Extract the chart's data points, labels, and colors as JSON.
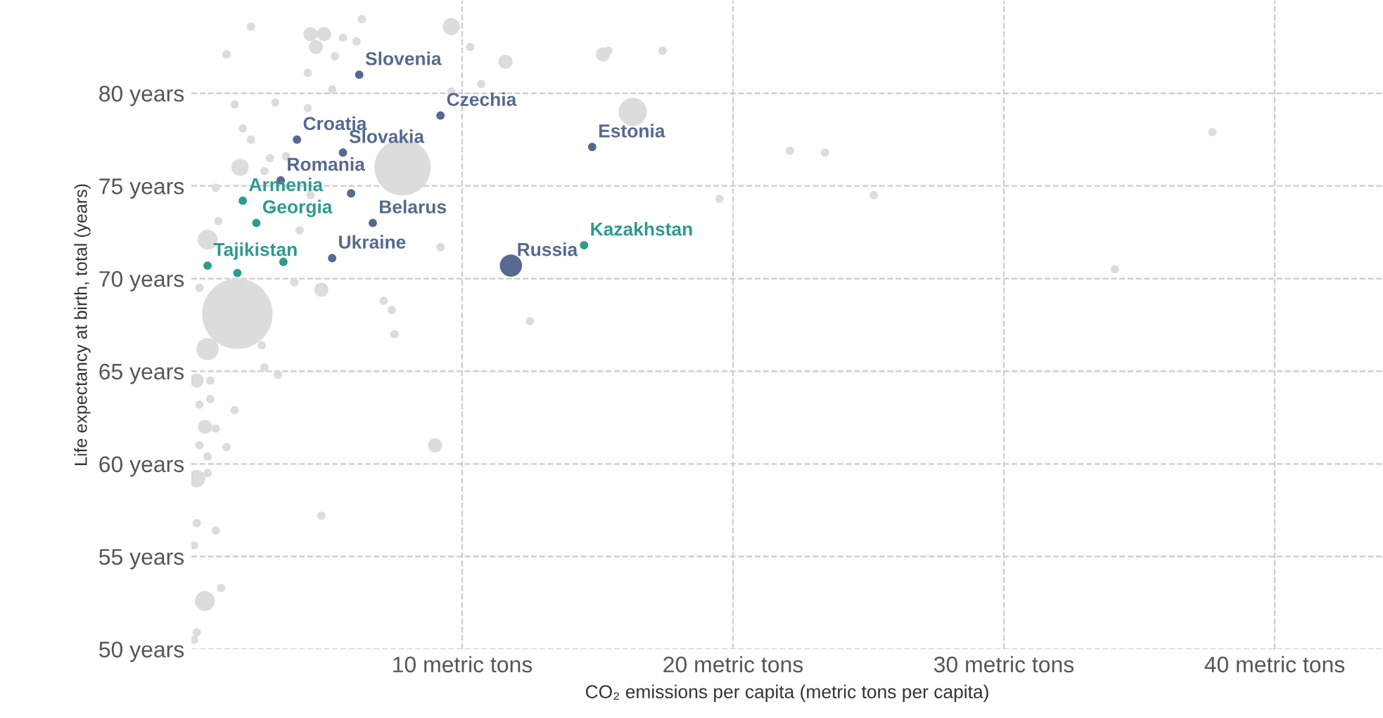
{
  "chart_data": {
    "type": "bubble",
    "xlabel": "CO₂ emissions per capita (metric tons per capita)",
    "ylabel": "Life expectancy at birth, total (years)",
    "xlim": [
      0,
      44
    ],
    "ylim": [
      50,
      85
    ],
    "xticks": [
      {
        "value": 10,
        "label": "10 metric tons"
      },
      {
        "value": 20,
        "label": "20 metric tons"
      },
      {
        "value": 30,
        "label": "30 metric tons"
      },
      {
        "value": 40,
        "label": "40 metric tons"
      }
    ],
    "yticks": [
      {
        "value": 50,
        "label": "50 years"
      },
      {
        "value": 55,
        "label": "55 years"
      },
      {
        "value": 60,
        "label": "60 years"
      },
      {
        "value": 65,
        "label": "65 years"
      },
      {
        "value": 70,
        "label": "70 years"
      },
      {
        "value": 75,
        "label": "75 years"
      },
      {
        "value": 80,
        "label": "80 years"
      }
    ],
    "grid": true,
    "line_style": "dashed",
    "series": [
      {
        "color": "#dcdcdc",
        "x": [
          9.6,
          6.3,
          2.2,
          4.4,
          4.9,
          5.6,
          6.1,
          4.6,
          10.3,
          11.6,
          15.4,
          17.4,
          1.3,
          5.3,
          4.3,
          5.2,
          9.6,
          10.7,
          3.1,
          1.6,
          4.3,
          16.3,
          1.9,
          2.2,
          3.5,
          2.9,
          7.8,
          1.8,
          0.9,
          2.7,
          3.0,
          4.4,
          1.0,
          4.0,
          0.6,
          9.2,
          3.8,
          15.2,
          22.1,
          23.4,
          19.5,
          25.2,
          37.7,
          34.1,
          12.5,
          0.3,
          4.8,
          7.1,
          7.4,
          7.5,
          1.7,
          0.6,
          2.6,
          2.7,
          3.2,
          0.2,
          0.7,
          0.3,
          0.7,
          1.6,
          0.5,
          0.9,
          1.3,
          0.3,
          0.6,
          9.0,
          0.2,
          0.6,
          4.8,
          0.2,
          0.9,
          0.1,
          0.5,
          1.1,
          0.2,
          0.1
        ],
        "values": [
          83.6,
          84.0,
          83.6,
          83.2,
          83.2,
          83.0,
          82.8,
          82.5,
          82.5,
          81.7,
          82.3,
          82.3,
          82.1,
          82.0,
          81.1,
          80.2,
          80.1,
          80.5,
          79.5,
          79.4,
          79.2,
          79.0,
          78.1,
          77.5,
          76.6,
          76.5,
          76.0,
          76.0,
          74.9,
          75.8,
          73.8,
          74.5,
          73.1,
          72.6,
          72.1,
          71.7,
          69.8,
          82.1,
          76.9,
          76.8,
          74.3,
          74.5,
          77.9,
          70.5,
          67.7,
          69.5,
          69.4,
          68.8,
          68.3,
          67.0,
          68.1,
          66.2,
          66.4,
          65.2,
          64.8,
          64.5,
          64.5,
          63.2,
          63.5,
          62.9,
          62.0,
          61.9,
          60.9,
          61.0,
          60.4,
          61.0,
          59.2,
          59.5,
          57.2,
          56.8,
          56.4,
          55.6,
          52.6,
          53.3,
          50.9,
          50.5
        ],
        "sizes": [
          0.06,
          0.014,
          0.014,
          0.04,
          0.04,
          0.014,
          0.014,
          0.04,
          0.014,
          0.04,
          0.014,
          0.014,
          0.014,
          0.014,
          0.014,
          0.014,
          0.014,
          0.014,
          0.014,
          0.014,
          0.014,
          0.16,
          0.014,
          0.014,
          0.014,
          0.014,
          0.64,
          0.06,
          0.014,
          0.014,
          0.014,
          0.014,
          0.014,
          0.014,
          0.08,
          0.014,
          0.014,
          0.04,
          0.014,
          0.014,
          0.014,
          0.014,
          0.014,
          0.014,
          0.014,
          0.014,
          0.04,
          0.014,
          0.014,
          0.014,
          1,
          0.1,
          0.014,
          0.014,
          0.014,
          0.04,
          0.014,
          0.014,
          0.014,
          0.014,
          0.04,
          0.014,
          0.014,
          0.014,
          0.014,
          0.04,
          0.06,
          0.014,
          0.014,
          0.014,
          0.014,
          0.014,
          0.08,
          0.014,
          0.014,
          0.014
        ]
      },
      {
        "color": "#56698f",
        "x": [
          5.9
        ],
        "values": [
          74.6
        ],
        "sizes": [
          0.014
        ]
      },
      {
        "color": "#2e9a90",
        "x": [
          1.7,
          3.4
        ],
        "values": [
          70.3,
          70.9
        ],
        "sizes": [
          0.014,
          0.014
        ]
      },
      {
        "name": "Slovenia",
        "color": "#56698f",
        "x": [
          6.2
        ],
        "values": [
          81.0
        ],
        "sizes": [
          0.014
        ]
      },
      {
        "name": "Czechia",
        "color": "#56698f",
        "x": [
          9.2
        ],
        "values": [
          78.8
        ],
        "sizes": [
          0.014
        ]
      },
      {
        "name": "Croatia",
        "color": "#56698f",
        "x": [
          3.9
        ],
        "values": [
          77.5
        ],
        "sizes": [
          0.014
        ]
      },
      {
        "name": "Slovakia",
        "color": "#56698f",
        "x": [
          5.6
        ],
        "values": [
          76.8
        ],
        "sizes": [
          0.014
        ]
      },
      {
        "name": "Estonia",
        "color": "#56698f",
        "x": [
          14.8
        ],
        "values": [
          77.1
        ],
        "sizes": [
          0.014
        ]
      },
      {
        "name": "Romania",
        "color": "#56698f",
        "x": [
          3.3
        ],
        "values": [
          75.3
        ],
        "sizes": [
          0.014
        ]
      },
      {
        "name": "Armenia",
        "color": "#2e9a90",
        "x": [
          1.9
        ],
        "values": [
          74.2
        ],
        "sizes": [
          0.014
        ]
      },
      {
        "name": "Georgia",
        "color": "#2e9a90",
        "x": [
          2.4
        ],
        "values": [
          73.0
        ],
        "sizes": [
          0.014
        ]
      },
      {
        "name": "Belarus",
        "color": "#56698f",
        "x": [
          6.7
        ],
        "values": [
          73.0
        ],
        "sizes": [
          0.014
        ]
      },
      {
        "name": "Ukraine",
        "color": "#56698f",
        "x": [
          5.2
        ],
        "values": [
          71.1
        ],
        "sizes": [
          0.014
        ]
      },
      {
        "name": "Tajikistan",
        "color": "#2e9a90",
        "x": [
          0.6
        ],
        "values": [
          70.7
        ],
        "sizes": [
          0.014
        ]
      },
      {
        "name": "Russia",
        "color": "#56698f",
        "x": [
          11.8
        ],
        "values": [
          70.7
        ],
        "sizes": [
          0.1
        ]
      },
      {
        "name": "Kazakhstan",
        "color": "#2e9a90",
        "x": [
          14.5
        ],
        "values": [
          71.8
        ],
        "sizes": [
          0.014
        ]
      }
    ]
  }
}
